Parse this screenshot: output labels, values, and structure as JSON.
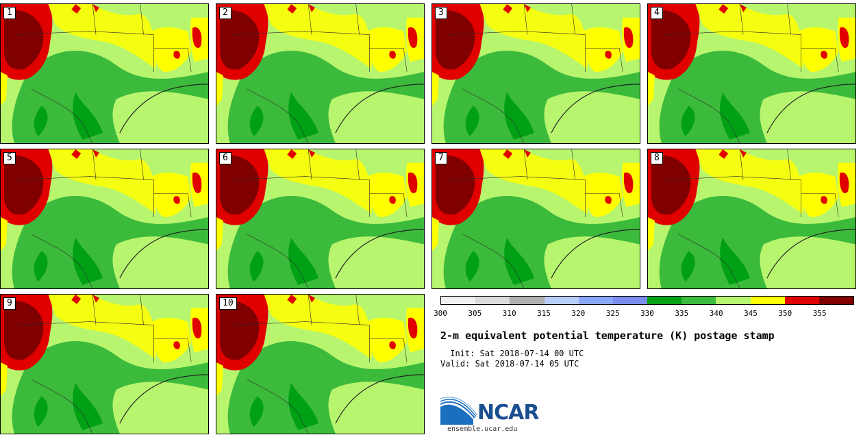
{
  "title": "2-m equivalent potential temperature (K) postage stamp",
  "init": " Init: Sat 2018-07-14 00 UTC",
  "valid": "Valid: Sat 2018-07-14 05 UTC",
  "logo_text": "NCAR",
  "url": "ensemble.ucar.edu",
  "panels": [
    "1",
    "2",
    "3",
    "4",
    "5",
    "6",
    "7",
    "8",
    "9",
    "10"
  ],
  "colorbar": {
    "colors": [
      "#f0f0f0",
      "#dcdcdc",
      "#b0b0b0",
      "#b8ccf8",
      "#8aa6f8",
      "#7b8ef0",
      "#00a015",
      "#3cba3c",
      "#b8f56e",
      "#ffff00",
      "#e00000",
      "#800000"
    ],
    "ticks": [
      "300",
      "305",
      "310",
      "315",
      "320",
      "325",
      "330",
      "335",
      "340",
      "345",
      "350",
      "355"
    ]
  },
  "colors": {
    "dark_red": "#800000",
    "red": "#e00000",
    "yellow": "#ffff00",
    "light_green": "#b8f56e",
    "green": "#3cba3c",
    "dark_green": "#00a015",
    "logo_blue": "#1a4f8f"
  }
}
